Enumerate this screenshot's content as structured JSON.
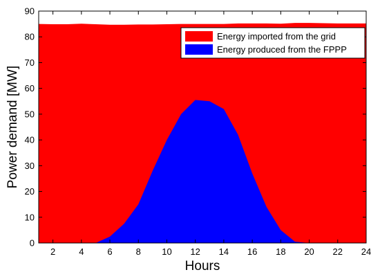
{
  "chart_data": {
    "type": "area",
    "title": "",
    "xlabel": "Hours",
    "ylabel": "Power demand [MW]",
    "xlim": [
      1,
      24
    ],
    "ylim": [
      0,
      90
    ],
    "x_ticks": [
      2,
      4,
      6,
      8,
      10,
      12,
      14,
      16,
      18,
      20,
      22,
      24
    ],
    "y_ticks": [
      0,
      10,
      20,
      30,
      40,
      50,
      60,
      70,
      80,
      90
    ],
    "grid": false,
    "legend_position": "top-right",
    "x": [
      1,
      2,
      3,
      4,
      5,
      6,
      7,
      8,
      9,
      10,
      11,
      12,
      13,
      14,
      15,
      16,
      17,
      18,
      19,
      20,
      21,
      22,
      23,
      24
    ],
    "series": [
      {
        "name": "Energy imported from the grid",
        "color": "#ff0000",
        "values": [
          85.0,
          84.9,
          84.9,
          85.1,
          84.9,
          84.7,
          84.7,
          84.8,
          84.8,
          84.9,
          85.0,
          85.0,
          85.0,
          85.0,
          85.2,
          85.2,
          85.2,
          85.1,
          85.4,
          85.4,
          85.3,
          85.2,
          85.2,
          85.2
        ]
      },
      {
        "name": "Energy produced from the FPPP",
        "color": "#0000ff",
        "values": [
          0,
          0,
          0,
          0,
          0,
          2.5,
          7.5,
          15,
          28,
          40,
          50,
          55.5,
          55,
          52,
          42,
          27,
          14,
          5,
          0.5,
          0,
          0,
          0,
          0,
          0
        ]
      }
    ]
  }
}
